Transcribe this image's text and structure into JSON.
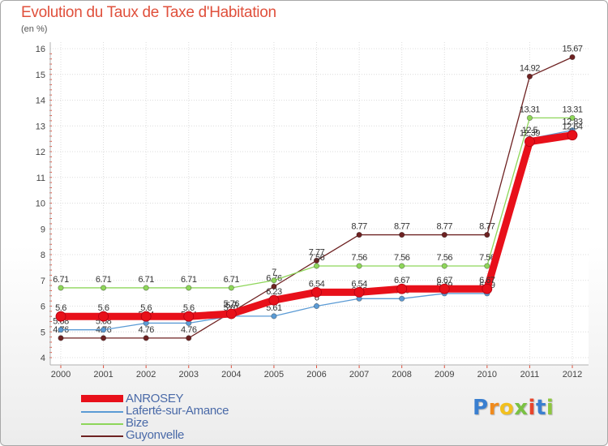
{
  "chart_data": {
    "type": "line",
    "title": "Evolution du Taux de Taxe d'Habitation",
    "subtitle": "(en %)",
    "x": [
      "2000",
      "2001",
      "2002",
      "2003",
      "2004",
      "2005",
      "2006",
      "2007",
      "2008",
      "2009",
      "2010",
      "2011",
      "2012"
    ],
    "ylim": [
      4,
      16
    ],
    "yticks": [
      "4",
      "5",
      "6",
      "7",
      "8",
      "9",
      "10",
      "11",
      "12",
      "13",
      "14",
      "15",
      "16"
    ],
    "grid": true,
    "legend_position": "bottom-left",
    "series": [
      {
        "name": "Guyonvelle",
        "color": "#6e2222",
        "values": [
          4.76,
          4.76,
          4.76,
          4.76,
          5.76,
          6.76,
          7.77,
          8.77,
          8.77,
          8.77,
          8.77,
          14.92,
          15.67
        ],
        "labels": [
          "4.76",
          "4.76",
          "4.76",
          "4.76",
          "5.76",
          "6.76",
          "7.77",
          "8.77",
          "8.77",
          "8.77",
          "8.77",
          "14.92",
          "15.67"
        ]
      },
      {
        "name": "Bize",
        "color": "#8ed65a",
        "values": [
          6.71,
          6.71,
          6.71,
          6.71,
          6.71,
          7.0,
          7.56,
          7.56,
          7.56,
          7.56,
          7.56,
          13.31,
          13.31
        ],
        "labels": [
          "6.71",
          "6.71",
          "6.71",
          "6.71",
          "6.71",
          "7",
          "7.56",
          "7.56",
          "7.56",
          "7.56",
          "7.56",
          "13.31",
          "13.31"
        ]
      },
      {
        "name": "Laferté-sur-Amance",
        "color": "#5b9bd5",
        "values": [
          5.08,
          5.08,
          5.34,
          5.34,
          5.61,
          5.61,
          6.0,
          6.29,
          6.29,
          6.49,
          6.49,
          12.5,
          12.83
        ],
        "labels": [
          "5.08",
          "5.08",
          "5.34",
          "5.34",
          "5.61",
          "5.61",
          "6",
          "6.29",
          "6.29",
          "6.49",
          "6.49",
          "12.5",
          "12.83"
        ]
      },
      {
        "name": "ANROSEY",
        "color": "#e8101a",
        "values": [
          5.6,
          5.6,
          5.6,
          5.6,
          5.7,
          6.23,
          6.54,
          6.54,
          6.67,
          6.67,
          6.67,
          12.39,
          12.64
        ],
        "labels": [
          "5.6",
          "5.6",
          "5.6",
          "5.6",
          "5.7",
          "6.23",
          "6.54",
          "6.54",
          "6.67",
          "6.67",
          "6.67",
          "12.39",
          "12.64"
        ]
      }
    ]
  },
  "legend": [
    {
      "name": "ANROSEY",
      "color": "#e8101a"
    },
    {
      "name": "Laferté-sur-Amance",
      "color": "#5b9bd5"
    },
    {
      "name": "Bize",
      "color": "#8ed65a"
    },
    {
      "name": "Guyonvelle",
      "color": "#6e2222"
    }
  ],
  "logo": {
    "letters": [
      "P",
      "r",
      "o",
      "x",
      "i",
      "t",
      "i"
    ],
    "colors": [
      "#3a7fd0",
      "#f08a1c",
      "#f2c01e",
      "#7ac143",
      "#e8452c",
      "#3a7fd0",
      "#8ec640"
    ]
  }
}
